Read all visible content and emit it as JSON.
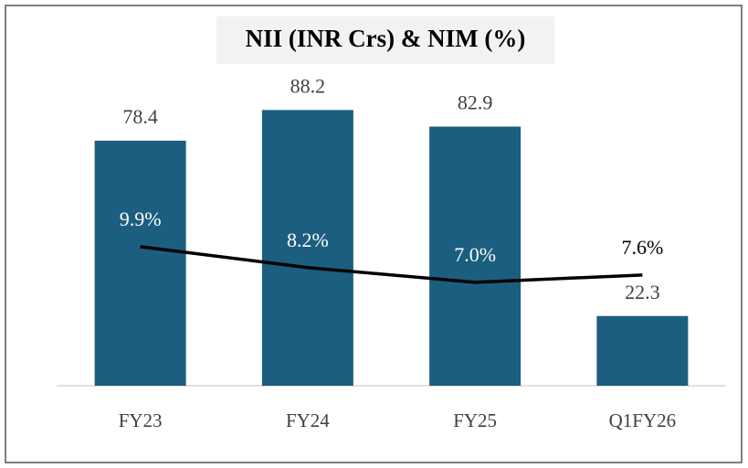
{
  "chart_data": {
    "type": "bar_line",
    "title": "NII (INR Crs) & NIM (%)",
    "categories": [
      "FY23",
      "FY24",
      "FY25",
      "Q1FY26"
    ],
    "ylim": [
      0,
      100
    ],
    "y2lim": [
      -1.4,
      24
    ],
    "series": [
      {
        "name": "NII (INR Crs)",
        "type": "bar",
        "color": "#1b5e80",
        "values": [
          78.4,
          88.2,
          82.9,
          22.3
        ]
      },
      {
        "name": "NIM (%)",
        "type": "line",
        "axis": "y2",
        "color": "#000000",
        "values": [
          9.9,
          8.2,
          7.0,
          7.6
        ],
        "value_labels": [
          "9.9%",
          "8.2%",
          "7.0%",
          "7.6%"
        ]
      }
    ]
  }
}
